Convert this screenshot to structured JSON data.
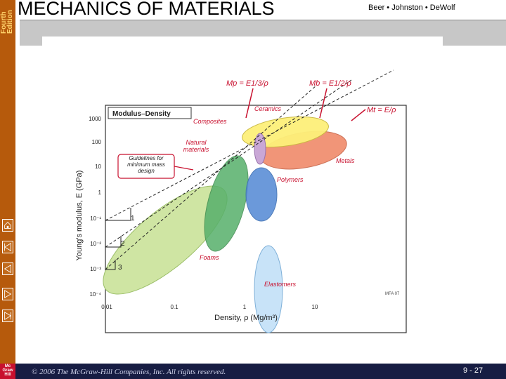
{
  "sidebar": {
    "edition": "Fourth Edition",
    "publisher_logo": "McGraw Hill"
  },
  "header": {
    "title": "MECHANICS OF MATERIALS",
    "authors": "Beer • Johnston • DeWolf"
  },
  "figure": {
    "panel_title": "Modulus–Density",
    "guideline_labels": [
      "Mp = E1/3/ρ",
      "Mb = E1/2/ρ",
      "Mt = E/ρ"
    ],
    "guideline_box": "Guidelines for minimum mass design",
    "materials": [
      "Ceramics",
      "Composites",
      "Natural materials",
      "Metals",
      "Polymers",
      "Foams",
      "Elastomers"
    ],
    "step_labels": [
      "1",
      "2",
      "3"
    ],
    "credit": "MFA 07",
    "ylabel": "Young's modulus, E (GPa)",
    "xlabel": "Density, ρ (Mg/m³)",
    "yticks": [
      "1000",
      "100",
      "10",
      "1",
      "10⁻¹",
      "10⁻²",
      "10⁻³",
      "10⁻⁴"
    ],
    "xticks": [
      "0.01",
      "0.1",
      "1",
      "10"
    ],
    "colors": {
      "ceramics": "#fdf07a",
      "composites": "#c9a7d6",
      "metals": "#f08a6a",
      "polymers": "#5b8fd6",
      "natural": "#57b06b",
      "foams": "#cfe5a3",
      "elastomers": "#c8e3f8",
      "annotation": "#c8102e"
    }
  },
  "footer": {
    "copyright": "© 2006 The McGraw-Hill Companies, Inc. All rights reserved.",
    "page": "9 - 27"
  }
}
